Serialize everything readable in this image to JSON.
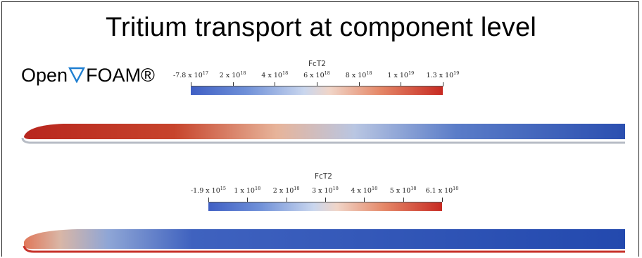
{
  "slide": {
    "title": "Tritium transport at component level",
    "logo": {
      "text_before": "Open",
      "text_after": "FOAM®",
      "icon": "nabla-icon",
      "icon_color": "#1f7fd1"
    }
  },
  "colorbars": [
    {
      "field_name": "FcT2",
      "ticks": [
        {
          "mant": "-7.8 x 10",
          "exp": "17"
        },
        {
          "mant": "2 x 10",
          "exp": "18"
        },
        {
          "mant": "4 x 10",
          "exp": "18"
        },
        {
          "mant": "6 x 10",
          "exp": "18"
        },
        {
          "mant": "8 x 10",
          "exp": "18"
        },
        {
          "mant": "1 x 10",
          "exp": "19"
        },
        {
          "mant": "1.3 x 10",
          "exp": "19"
        }
      ]
    },
    {
      "field_name": "FcT2",
      "ticks": [
        {
          "mant": "-1.9 x 10",
          "exp": "15"
        },
        {
          "mant": "1 x 10",
          "exp": "18"
        },
        {
          "mant": "2 x 10",
          "exp": "18"
        },
        {
          "mant": "3 x 10",
          "exp": "18"
        },
        {
          "mant": "4 x 10",
          "exp": "18"
        },
        {
          "mant": "5 x 10",
          "exp": "18"
        },
        {
          "mant": "6.1 x 10",
          "exp": "18"
        }
      ]
    }
  ],
  "colors": {
    "low": "#2b4fb0",
    "mid": "#dfe4ee",
    "high": "#c72a22"
  }
}
